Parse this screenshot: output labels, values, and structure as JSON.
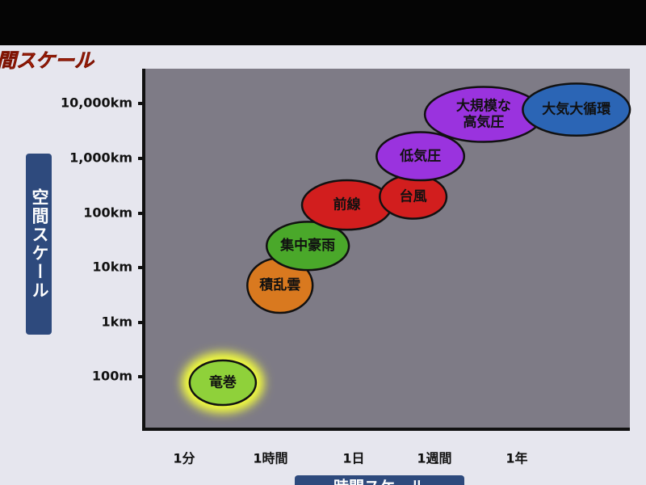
{
  "chart_data": {
    "type": "ellipse",
    "title": "空間スケール",
    "y_label": "空間スケール",
    "x_label": "時間スケール",
    "x_scale": "log",
    "y_scale": "log",
    "xlim": [
      0.15,
      120000000
    ],
    "ylim": [
      10,
      40000000
    ],
    "xticks": [
      {
        "value": 1,
        "label": "1分"
      },
      {
        "value": 60,
        "label": "1時間"
      },
      {
        "value": 1440,
        "label": "1日"
      },
      {
        "value": 10080,
        "label": "1週間"
      },
      {
        "value": 525600,
        "label": "1年"
      }
    ],
    "yticks": [
      {
        "value": 100,
        "label": "100m"
      },
      {
        "value": 1000,
        "label": "1km"
      },
      {
        "value": 10000,
        "label": "10km"
      },
      {
        "value": 100000,
        "label": "100km"
      },
      {
        "value": 1000000,
        "label": "1,000km"
      },
      {
        "value": 10000000,
        "label": "10,000km"
      }
    ],
    "series": [
      {
        "label": [
          "竜巻"
        ],
        "color": "#8fd13a",
        "highlight": true,
        "x": [
          1.3,
          30
        ],
        "y": [
          30,
          200
        ]
      },
      {
        "label": [
          "積乱雲"
        ],
        "color": "#d9791f",
        "x": [
          20,
          300
        ],
        "y": [
          1500,
          15000
        ]
      },
      {
        "label": [
          "集中豪雨"
        ],
        "color": "#4aa82a",
        "x": [
          50,
          1200
        ],
        "y": [
          9000,
          70000
        ]
      },
      {
        "label": [
          "前線"
        ],
        "color": "#d21e1e",
        "x": [
          200,
          3600
        ],
        "y": [
          50000,
          400000
        ]
      },
      {
        "label": [
          "台風"
        ],
        "color": "#d21e1e",
        "x": [
          2700,
          18000
        ],
        "y": [
          80000,
          500000
        ]
      },
      {
        "label": [
          "低気圧"
        ],
        "color": "#9a33de",
        "x": [
          2500,
          42000
        ],
        "y": [
          400000,
          3000000
        ]
      },
      {
        "label": [
          "大規模な",
          "高気圧"
        ],
        "color": "#9a33de",
        "x": [
          8000,
          1800000
        ],
        "y": [
          2000000,
          20000000
        ]
      },
      {
        "label": [
          "大気大循環"
        ],
        "color": "#2b65b5",
        "x": [
          700000,
          120000000
        ],
        "y": [
          2600000,
          23000000
        ]
      }
    ]
  }
}
